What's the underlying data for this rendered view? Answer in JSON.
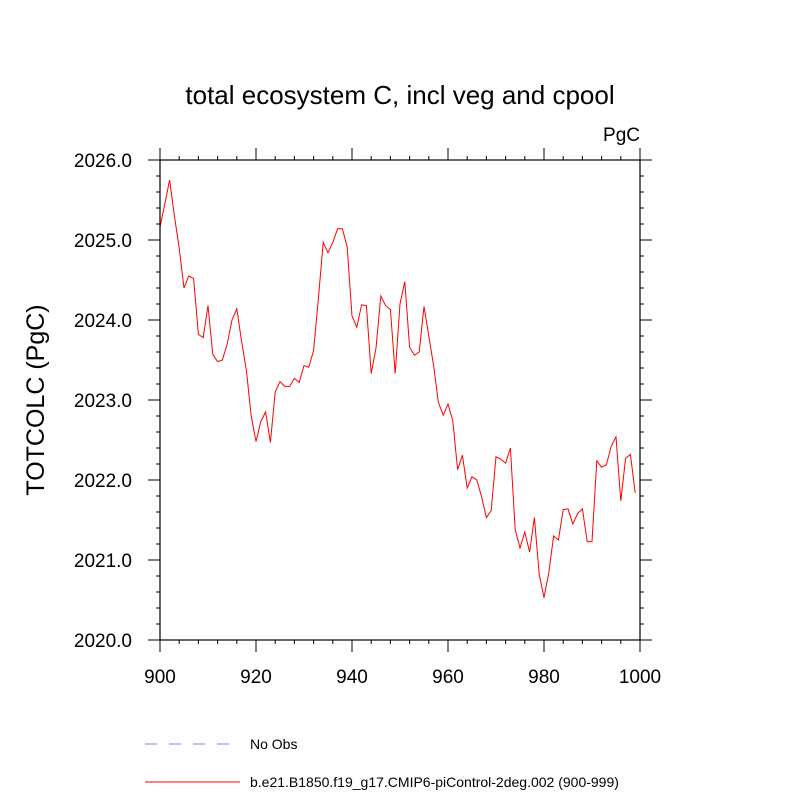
{
  "chart_data": {
    "type": "line",
    "title": "total ecosystem C, incl veg and cpool",
    "units": "PgC",
    "xlabel": "",
    "ylabel": "TOTCOLC  (PgC)",
    "xlim": [
      900,
      1000
    ],
    "ylim": [
      2020.0,
      2026.0
    ],
    "x_ticks": [
      900,
      920,
      940,
      960,
      980,
      1000
    ],
    "x_tick_labels": [
      "900",
      "920",
      "940",
      "960",
      "980",
      "1000"
    ],
    "y_ticks": [
      2020.0,
      2021.0,
      2022.0,
      2023.0,
      2024.0,
      2025.0,
      2026.0
    ],
    "y_tick_labels": [
      "2020.0",
      "2021.0",
      "2022.0",
      "2023.0",
      "2024.0",
      "2025.0",
      "2026.0"
    ],
    "series": [
      {
        "name": "b.e21.B1850.f19_g17.CMIP6-piControl-2deg.002 (900-999)",
        "color": "#ff0000",
        "style": "solid",
        "x_start": 900,
        "values": [
          2025.16,
          2025.45,
          2025.75,
          2025.3,
          2024.9,
          2024.4,
          2024.55,
          2024.52,
          2023.82,
          2023.78,
          2024.18,
          2023.57,
          2023.48,
          2023.5,
          2023.7,
          2024.0,
          2024.14,
          2023.73,
          2023.37,
          2022.8,
          2022.48,
          2022.73,
          2022.85,
          2022.47,
          2023.1,
          2023.23,
          2023.17,
          2023.17,
          2023.27,
          2023.22,
          2023.43,
          2023.41,
          2023.62,
          2024.27,
          2024.97,
          2024.84,
          2024.97,
          2025.14,
          2025.14,
          2024.91,
          2024.05,
          2023.91,
          2024.19,
          2024.18,
          2023.33,
          2023.65,
          2024.3,
          2024.18,
          2024.13,
          2023.33,
          2024.2,
          2024.48,
          2023.66,
          2023.56,
          2023.6,
          2024.17,
          2023.8,
          2023.43,
          2022.97,
          2022.81,
          2022.95,
          2022.74,
          2022.13,
          2022.31,
          2021.9,
          2022.04,
          2022.0,
          2021.79,
          2021.53,
          2021.62,
          2022.29,
          2022.26,
          2022.21,
          2022.4,
          2021.38,
          2021.15,
          2021.35,
          2021.1,
          2021.53,
          2020.82,
          2020.53,
          2020.84,
          2021.3,
          2021.25,
          2021.63,
          2021.64,
          2021.45,
          2021.58,
          2021.64,
          2021.23,
          2021.23,
          2022.24,
          2022.16,
          2022.19,
          2022.42,
          2022.54,
          2021.74,
          2022.27,
          2022.32,
          2021.84
        ]
      }
    ],
    "legend": [
      {
        "label": "No Obs",
        "color": "#8080ff",
        "style": "dashed"
      },
      {
        "label": "b.e21.B1850.f19_g17.CMIP6-piControl-2deg.002 (900-999)",
        "color": "#ff0000",
        "style": "solid"
      }
    ],
    "legend_position": "bottom-left"
  }
}
